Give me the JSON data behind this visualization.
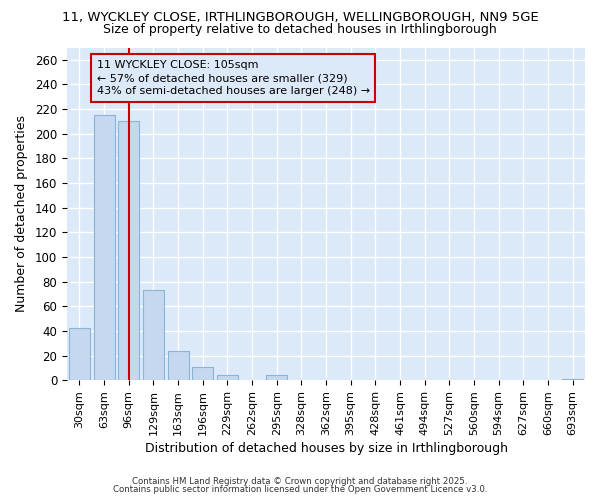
{
  "title_line1": "11, WYCKLEY CLOSE, IRTHLINGBOROUGH, WELLINGBOROUGH, NN9 5GE",
  "title_line2": "Size of property relative to detached houses in Irthlingborough",
  "xlabel": "Distribution of detached houses by size in Irthlingborough",
  "ylabel": "Number of detached properties",
  "footnote1": "Contains HM Land Registry data © Crown copyright and database right 2025.",
  "footnote2": "Contains public sector information licensed under the Open Government Licence v3.0.",
  "categories": [
    "30sqm",
    "63sqm",
    "96sqm",
    "129sqm",
    "163sqm",
    "196sqm",
    "229sqm",
    "262sqm",
    "295sqm",
    "328sqm",
    "362sqm",
    "395sqm",
    "428sqm",
    "461sqm",
    "494sqm",
    "527sqm",
    "560sqm",
    "594sqm",
    "627sqm",
    "660sqm",
    "693sqm"
  ],
  "values": [
    42,
    215,
    210,
    73,
    24,
    11,
    4,
    0,
    4,
    0,
    0,
    0,
    0,
    0,
    0,
    0,
    0,
    0,
    0,
    0,
    1
  ],
  "bar_color": "#c5d8f0",
  "bar_edge_color": "#8ab4d8",
  "ylim": [
    0,
    270
  ],
  "yticks": [
    0,
    20,
    40,
    60,
    80,
    100,
    120,
    140,
    160,
    180,
    200,
    220,
    240,
    260
  ],
  "property_line_x": 2.0,
  "annotation_box_text": "11 WYCKLEY CLOSE: 105sqm\n← 57% of detached houses are smaller (329)\n43% of semi-detached houses are larger (248) →",
  "annotation_box_color": "#cc0000",
  "vline_color": "#cc0000",
  "plot_bg_color": "#dce9f8",
  "fig_bg_color": "#ffffff",
  "grid_color": "#ffffff",
  "title1_fontsize": 9.5,
  "title2_fontsize": 9.0,
  "annot_fontsize": 8.0,
  "xlabel_fontsize": 9.0,
  "ylabel_fontsize": 9.0,
  "xtick_fontsize": 8.0,
  "ytick_fontsize": 8.5
}
